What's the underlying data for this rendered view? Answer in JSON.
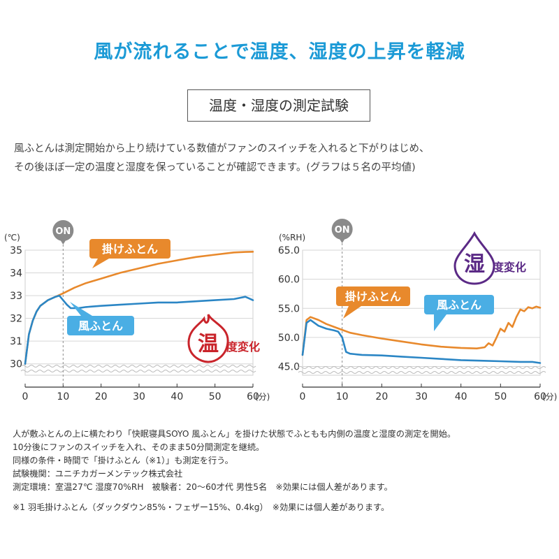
{
  "headline": "風が流れることで温度、湿度の上昇を軽減",
  "box_title": "温度・湿度の測定試験",
  "description": [
    "風ふとんは測定開始から上り続けている数値がファンのスイッチを入れると下がりはじめ、",
    "その後ほぼ一定の温度と湿度を保っていることが確認できます。(グラフは５名の平均値)"
  ],
  "colors": {
    "headline": "#1b9ad6",
    "kake": "#e8892c",
    "kaze": "#2b86c5",
    "kaze_label": "#4aaee4",
    "temp_accent": "#c9242b",
    "hum_accent": "#5b2a86",
    "on_badge": "#8a8a8a"
  },
  "chart_data": [
    {
      "type": "line",
      "ylabel": "(℃)",
      "xlabel": "(分)",
      "xlim": [
        0,
        60
      ],
      "ylim": [
        29.5,
        35
      ],
      "yticks": [
        "30",
        "31",
        "32",
        "33",
        "34",
        "35"
      ],
      "xticks": [
        "0",
        "10",
        "20",
        "30",
        "40",
        "50",
        "60"
      ],
      "on_marker": {
        "x": 10,
        "label": "ON"
      },
      "badge": {
        "main": "温",
        "sub": "度変化"
      },
      "series": [
        {
          "name": "掛けふとん",
          "x": [
            0,
            1,
            2,
            3,
            4,
            6,
            8,
            10,
            13,
            16,
            20,
            25,
            30,
            35,
            40,
            45,
            50,
            55,
            58,
            60
          ],
          "y": [
            30.0,
            31.3,
            31.9,
            32.3,
            32.55,
            32.8,
            32.95,
            33.1,
            33.35,
            33.55,
            33.75,
            34.0,
            34.2,
            34.4,
            34.55,
            34.7,
            34.8,
            34.9,
            34.92,
            34.93
          ]
        },
        {
          "name": "風ふとん",
          "x": [
            0,
            1,
            2,
            3,
            4,
            6,
            8,
            9,
            10,
            11,
            12,
            14,
            16,
            20,
            25,
            30,
            35,
            40,
            45,
            50,
            55,
            58,
            60
          ],
          "y": [
            30.0,
            31.3,
            31.9,
            32.3,
            32.55,
            32.8,
            32.95,
            33.0,
            32.8,
            32.6,
            32.45,
            32.45,
            32.5,
            32.55,
            32.6,
            32.65,
            32.7,
            32.7,
            32.75,
            32.8,
            32.85,
            32.95,
            32.8
          ]
        }
      ]
    },
    {
      "type": "line",
      "ylabel": "(%RH)",
      "xlabel": "(分)",
      "xlim": [
        0,
        60
      ],
      "ylim": [
        43.5,
        65
      ],
      "yticks": [
        "45.0",
        "50.0",
        "55.0",
        "60.0",
        "65.0"
      ],
      "xticks": [
        "0",
        "10",
        "20",
        "30",
        "40",
        "50",
        "60"
      ],
      "on_marker": {
        "x": 10,
        "label": "ON"
      },
      "badge": {
        "main": "湿",
        "sub": "度変化"
      },
      "series": [
        {
          "name": "掛けふとん",
          "x": [
            0,
            1,
            2,
            4,
            6,
            8,
            10,
            12,
            15,
            20,
            25,
            30,
            35,
            40,
            44,
            46,
            47,
            48,
            49,
            50,
            51,
            52,
            53,
            54,
            55,
            56,
            57,
            58,
            59,
            60
          ],
          "y": [
            47.0,
            53.0,
            53.5,
            53.0,
            52.3,
            51.8,
            51.3,
            50.8,
            50.4,
            49.8,
            49.3,
            48.8,
            48.4,
            48.2,
            48.1,
            48.3,
            49.0,
            48.6,
            50.0,
            51.5,
            51.0,
            52.5,
            51.8,
            53.5,
            54.8,
            54.5,
            55.2,
            55.0,
            55.3,
            55.1
          ]
        },
        {
          "name": "風ふとん",
          "x": [
            0,
            1,
            2,
            4,
            6,
            8,
            9,
            10,
            11,
            12,
            15,
            20,
            25,
            30,
            35,
            40,
            45,
            50,
            55,
            58,
            60
          ],
          "y": [
            47.0,
            52.5,
            53.0,
            52.0,
            51.5,
            51.2,
            51.0,
            50.0,
            47.5,
            47.2,
            47.0,
            46.9,
            46.7,
            46.5,
            46.3,
            46.1,
            46.0,
            45.9,
            45.8,
            45.8,
            45.6
          ]
        }
      ]
    }
  ],
  "notes": [
    "人が敷ふとんの上に横たわり「快眠寝具SOYO 風ふとん」を掛けた状態でふともも内側の温度と湿度の測定を開始。",
    "10分後にファンのスイッチを入れ、そのまま50分間測定を継続。",
    "同様の条件・時間で「掛けふとん（※1）」も測定を行う。",
    "試験機関：ユニチカガーメンテック株式会社",
    "測定環境：室温27℃ 湿度70%RH　被験者：20～60才代 男性5名　※効果には個人差があります。",
    "※1 羽毛掛けふとん（ダックダウン85%・フェザー15%、0.4kg）　※効果には個人差があります。"
  ]
}
